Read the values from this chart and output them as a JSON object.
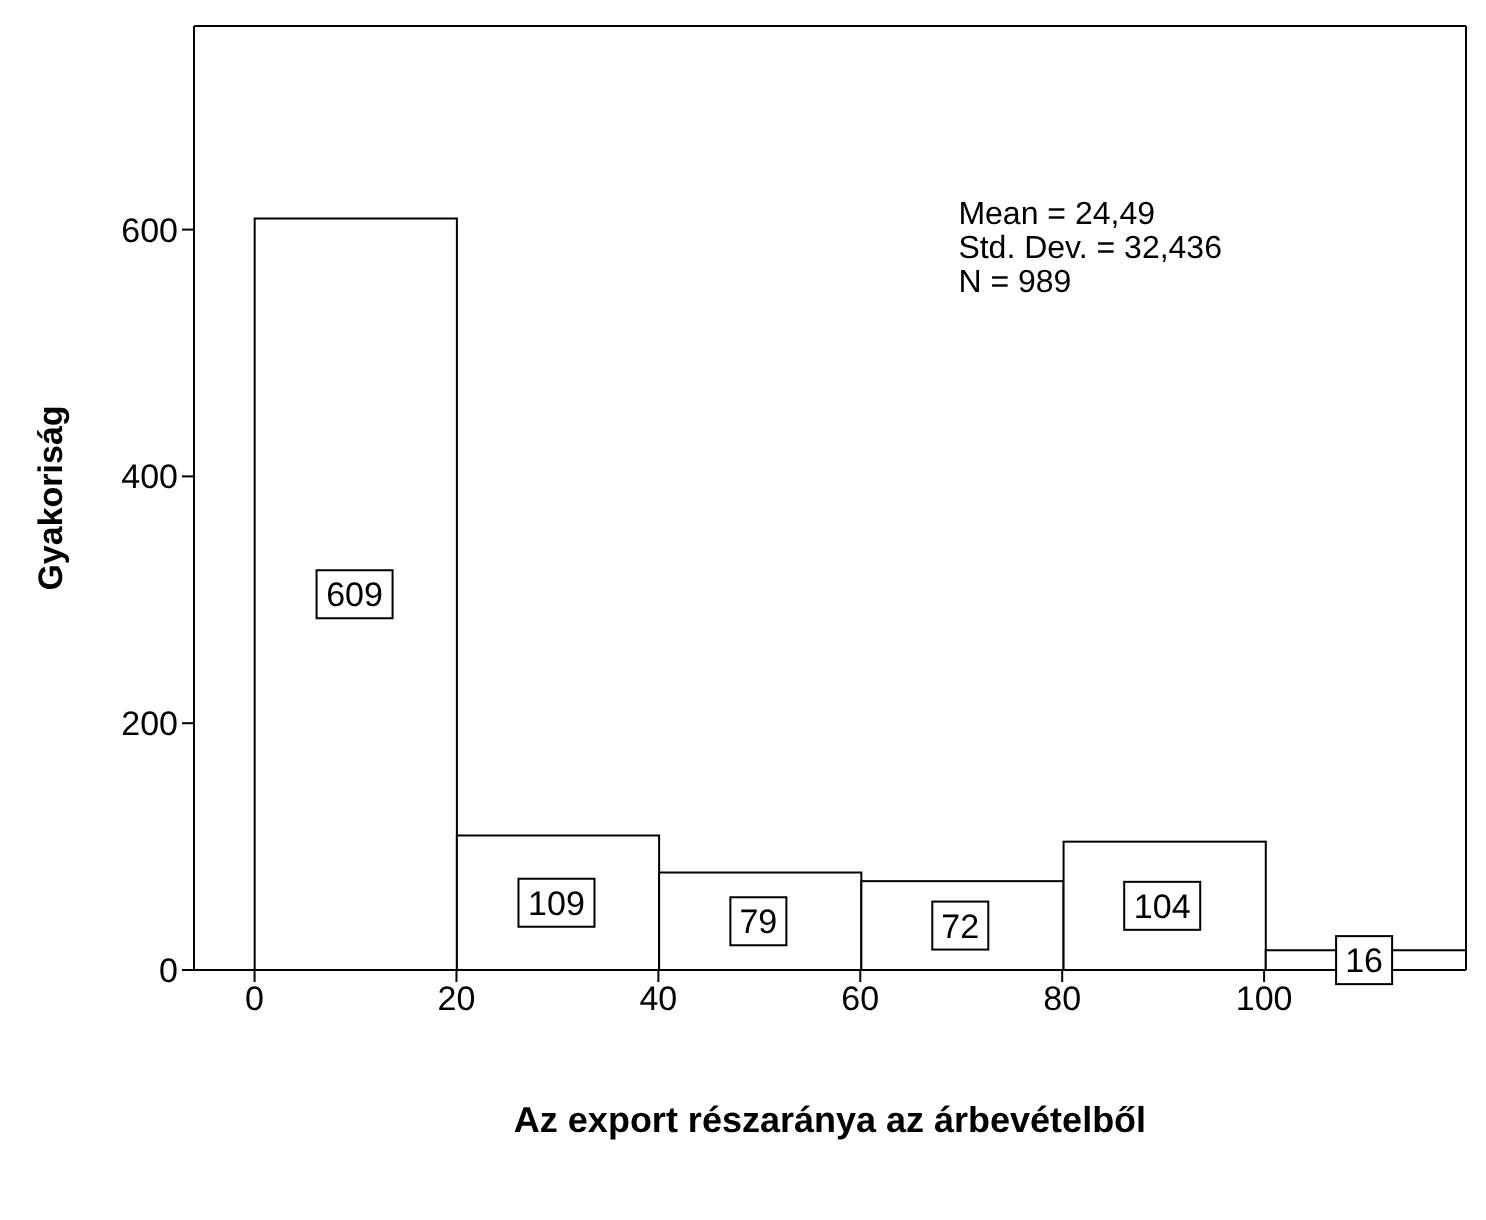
{
  "chart_data": {
    "type": "histogram",
    "xlabel": "Az export részaránya az árbevételből",
    "ylabel": "Gyakoriság",
    "bins": [
      0,
      20,
      40,
      60,
      80,
      100,
      120
    ],
    "values": [
      609,
      109,
      79,
      72,
      104,
      16
    ],
    "color": "#ffffff",
    "data_labels": true,
    "xlim": [
      -6,
      120
    ],
    "xticks": [
      0,
      20,
      40,
      60,
      80,
      100
    ],
    "ylim": [
      0,
      765
    ],
    "yticks": [
      0,
      200,
      400,
      600
    ],
    "annotations": [
      "Mean = 24,49",
      "Std. Dev. = 32,436",
      "N = 989"
    ]
  }
}
